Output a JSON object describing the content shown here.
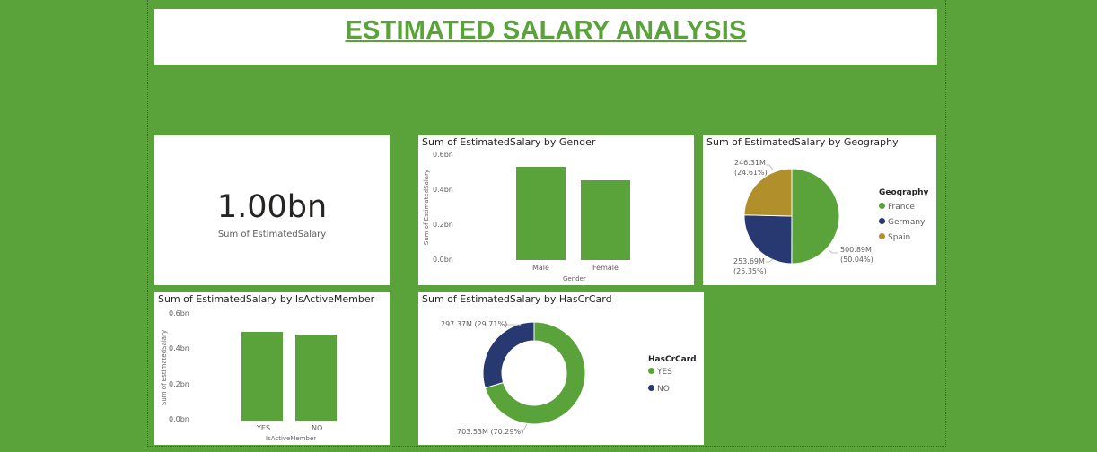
{
  "dashboard": {
    "title": "ESTIMATED SALARY ANALYSIS"
  },
  "kpi": {
    "value": "1.00bn",
    "label": "Sum of EstimatedSalary"
  },
  "colors": {
    "background": "#5aa33b",
    "bar": "#5aa33b",
    "france": "#5aa33b",
    "germany": "#283870",
    "spain": "#b1902b",
    "yes": "#5aa33b",
    "no": "#283870"
  },
  "chart_data": [
    {
      "id": "gender",
      "type": "bar",
      "title": "Sum of EstimatedSalary by Gender",
      "xlabel": "Gender",
      "ylabel": "Sum of EstimatedSalary",
      "categories": [
        "Male",
        "Female"
      ],
      "values": [
        0.54,
        0.46
      ],
      "yticks": [
        "0.6bn",
        "0.4bn",
        "0.2bn",
        "0.0bn"
      ],
      "ylim": [
        0,
        0.6
      ]
    },
    {
      "id": "geography",
      "type": "pie",
      "title": "Sum of EstimatedSalary by Geography",
      "legend_title": "Geography",
      "labels": [
        "France",
        "Germany",
        "Spain"
      ],
      "values": [
        500.89,
        253.69,
        246.31
      ],
      "value_labels": [
        "500.89M",
        "253.69M",
        "246.31M"
      ],
      "percent_labels": [
        "(50.04%)",
        "(25.35%)",
        "(24.61%)"
      ]
    },
    {
      "id": "active",
      "type": "bar",
      "title": "Sum of EstimatedSalary by IsActiveMember",
      "xlabel": "IsActiveMember",
      "ylabel": "Sum of EstimatedSalary",
      "categories": [
        "YES",
        "NO"
      ],
      "values": [
        0.51,
        0.49
      ],
      "yticks": [
        "0.6bn",
        "0.4bn",
        "0.2bn",
        "0.0bn"
      ],
      "ylim": [
        0,
        0.6
      ]
    },
    {
      "id": "hascrcard",
      "type": "pie",
      "title": "Sum of EstimatedSalary by HasCrCard",
      "legend_title": "HasCrCard",
      "labels": [
        "YES",
        "NO"
      ],
      "values": [
        703.53,
        297.37
      ],
      "data_labels": [
        "703.53M (70.29%)",
        "297.37M (29.71%)"
      ]
    }
  ]
}
